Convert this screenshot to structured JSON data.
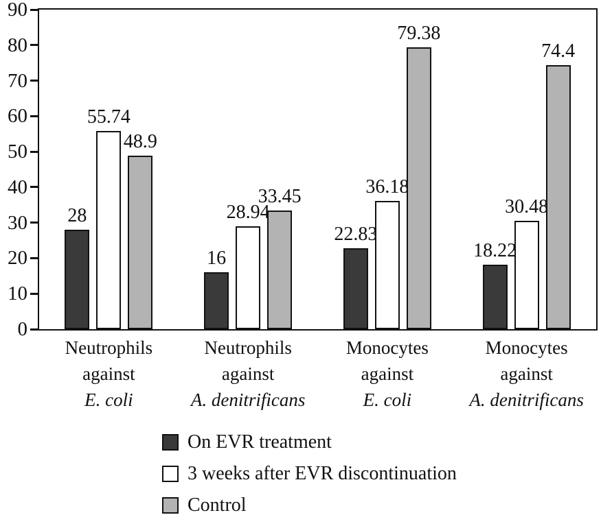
{
  "chart_data": {
    "type": "bar",
    "title": "",
    "xlabel": "",
    "ylabel": "",
    "ylim": [
      0,
      90
    ],
    "yticks": [
      0,
      10,
      20,
      30,
      40,
      50,
      60,
      70,
      80,
      90
    ],
    "grid": false,
    "legend_position": "bottom-left",
    "plot_border": "full-rectangle",
    "bar_outline_color": "#111111",
    "categories": [
      {
        "line1": "Neutrophils",
        "line2": "against",
        "species": "E. coli"
      },
      {
        "line1": "Neutrophils",
        "line2": "against",
        "species": "A. denitrificans"
      },
      {
        "line1": "Monocytes",
        "line2": "against",
        "species": "E. coli"
      },
      {
        "line1": "Monocytes",
        "line2": "against",
        "species": "A. denitrificans"
      }
    ],
    "series": [
      {
        "name": "On EVR treatment",
        "color": "#3a3a3a",
        "values": [
          28,
          16,
          22.83,
          18.22
        ]
      },
      {
        "name": "3 weeks after EVR discontinuation",
        "color": "#ffffff",
        "values": [
          55.74,
          28.94,
          36.18,
          30.48
        ]
      },
      {
        "name": "Control",
        "color": "#b3b3b3",
        "values": [
          48.9,
          33.45,
          79.38,
          74.4
        ]
      }
    ]
  }
}
